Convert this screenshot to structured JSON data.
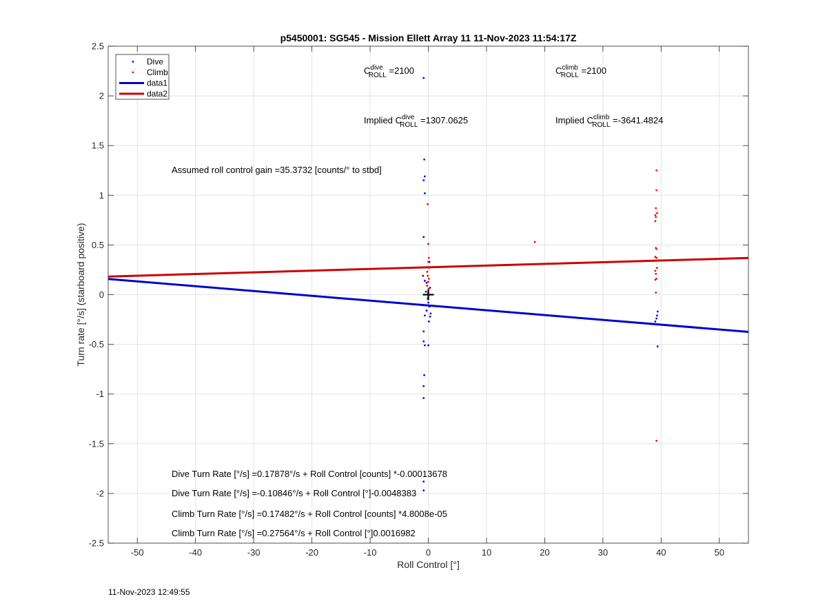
{
  "chart_data": {
    "type": "scatter",
    "title": "p5450001: SG545 - Mission Ellett Array 11 11-Nov-2023 11:54:17Z",
    "xlabel": "Roll Control [°]",
    "ylabel": "Turn rate [°/s] (starboard positive)",
    "xlim": [
      -55,
      55
    ],
    "ylim": [
      -2.5,
      2.5
    ],
    "xticks": [
      -50,
      -40,
      -30,
      -20,
      -10,
      0,
      10,
      20,
      30,
      40,
      50
    ],
    "yticks": [
      -2.5,
      -2,
      -1.5,
      -1,
      -0.5,
      0,
      0.5,
      1,
      1.5,
      2,
      2.5
    ],
    "xtick_labels": [
      "-50",
      "-40",
      "-30",
      "-20",
      "-10",
      "0",
      "10",
      "20",
      "30",
      "40",
      "50"
    ],
    "ytick_labels": [
      "-2.5",
      "-2",
      "-1.5",
      "-1",
      "-0.5",
      "0",
      "0.5",
      "1",
      "1.5",
      "2",
      "2.5"
    ],
    "grid": true,
    "legend_position": "top-left",
    "legend": [
      {
        "label": "Dive",
        "kind": "marker",
        "color": "#0000ff"
      },
      {
        "label": "Climb",
        "kind": "marker",
        "color": "#ff0000"
      },
      {
        "label": "data1",
        "kind": "line",
        "color": "#0000cc"
      },
      {
        "label": "data2",
        "kind": "line",
        "color": "#cc0000"
      }
    ],
    "series": [
      {
        "name": "Dive",
        "kind": "scatter",
        "color": "#0000ff",
        "points": [
          [
            -0.8,
            2.18
          ],
          [
            -0.7,
            1.36
          ],
          [
            -0.6,
            1.19
          ],
          [
            -0.8,
            1.15
          ],
          [
            -0.6,
            1.02
          ],
          [
            -0.8,
            0.58
          ],
          [
            -0.9,
            0.19
          ],
          [
            -0.6,
            0.14
          ],
          [
            -0.3,
            0.12
          ],
          [
            -0.2,
            0.09
          ],
          [
            -0.4,
            0.03
          ],
          [
            -0.1,
            -0.04
          ],
          [
            0.0,
            -0.08
          ],
          [
            0.2,
            -0.12
          ],
          [
            -0.3,
            -0.16
          ],
          [
            0.4,
            -0.19
          ],
          [
            0.3,
            -0.22
          ],
          [
            -0.6,
            -0.21
          ],
          [
            0.1,
            -0.27
          ],
          [
            -0.8,
            -0.37
          ],
          [
            -0.8,
            -0.47
          ],
          [
            -0.6,
            -0.51
          ],
          [
            0.0,
            -0.51
          ],
          [
            -0.7,
            -0.81
          ],
          [
            -0.8,
            -0.92
          ],
          [
            -0.8,
            -1.04
          ],
          [
            -0.8,
            -1.88
          ],
          [
            -0.8,
            -1.97
          ],
          [
            0.2,
            0.33
          ],
          [
            0.3,
            0.07
          ],
          [
            39.4,
            -0.17
          ],
          [
            39.3,
            -0.21
          ],
          [
            39.2,
            -0.24
          ],
          [
            39.0,
            -0.27
          ],
          [
            39.4,
            -0.52
          ]
        ]
      },
      {
        "name": "Climb",
        "kind": "scatter",
        "color": "#ff0000",
        "points": [
          [
            -0.1,
            0.91
          ],
          [
            0.0,
            0.51
          ],
          [
            0.1,
            0.37
          ],
          [
            0.0,
            0.33
          ],
          [
            0.2,
            0.27
          ],
          [
            -0.2,
            0.23
          ],
          [
            -0.1,
            0.19
          ],
          [
            0.1,
            0.16
          ],
          [
            0.0,
            0.13
          ],
          [
            -0.2,
            0.09
          ],
          [
            0.1,
            0.06
          ],
          [
            0.0,
            0.02
          ],
          [
            18.3,
            0.53
          ],
          [
            39.2,
            1.25
          ],
          [
            39.2,
            1.05
          ],
          [
            39.1,
            0.87
          ],
          [
            39.3,
            0.82
          ],
          [
            39.0,
            0.8
          ],
          [
            39.1,
            0.78
          ],
          [
            39.0,
            0.74
          ],
          [
            39.1,
            0.47
          ],
          [
            39.2,
            0.46
          ],
          [
            39.0,
            0.38
          ],
          [
            39.2,
            0.37
          ],
          [
            39.3,
            0.27
          ],
          [
            39.0,
            0.24
          ],
          [
            39.1,
            0.21
          ],
          [
            39.2,
            0.16
          ],
          [
            39.0,
            0.15
          ],
          [
            39.1,
            0.02
          ],
          [
            39.2,
            -1.47
          ]
        ]
      },
      {
        "name": "data1",
        "kind": "line",
        "color": "#0000cc",
        "intercept": -0.10846,
        "slope": -0.0048383
      },
      {
        "name": "data2",
        "kind": "line",
        "color": "#cc0000",
        "intercept": 0.27564,
        "slope": 0.0016982
      }
    ],
    "marker": {
      "x": 0,
      "y": 0,
      "symbol": "+",
      "color": "#000000"
    },
    "annotations": {
      "c_roll_dive": {
        "base": "C",
        "sup": "dive",
        "sub": "ROLL",
        "value": " =2100"
      },
      "c_roll_climb": {
        "base": "C",
        "sup": "climb",
        "sub": "ROLL",
        "value": " =2100"
      },
      "implied_dive": {
        "prefix": "Implied C",
        "sup": "dive",
        "sub": "ROLL",
        "value": " =1307.0625"
      },
      "implied_climb": {
        "prefix": "Implied C",
        "sup": "climb",
        "sub": "ROLL",
        "value": " =-3641.4824"
      },
      "gain": "Assumed roll control gain =35.3732 [counts/° to stbd]",
      "dive_eq_counts": "Dive Turn Rate [°/s] =0.17878°/s + Roll Control [counts] *-0.00013678",
      "dive_eq_deg": "Dive Turn Rate [°/s] =-0.10846°/s + Roll Control [°]-0.0048383",
      "climb_eq_counts": "Climb Turn Rate [°/s] =0.17482°/s + Roll Control [counts] *4.8008e-05",
      "climb_eq_deg": "Climb Turn Rate [°/s] =0.27564°/s + Roll Control [°]0.0016982"
    }
  },
  "footer": {
    "timestamp": "11-Nov-2023 12:49:55"
  }
}
